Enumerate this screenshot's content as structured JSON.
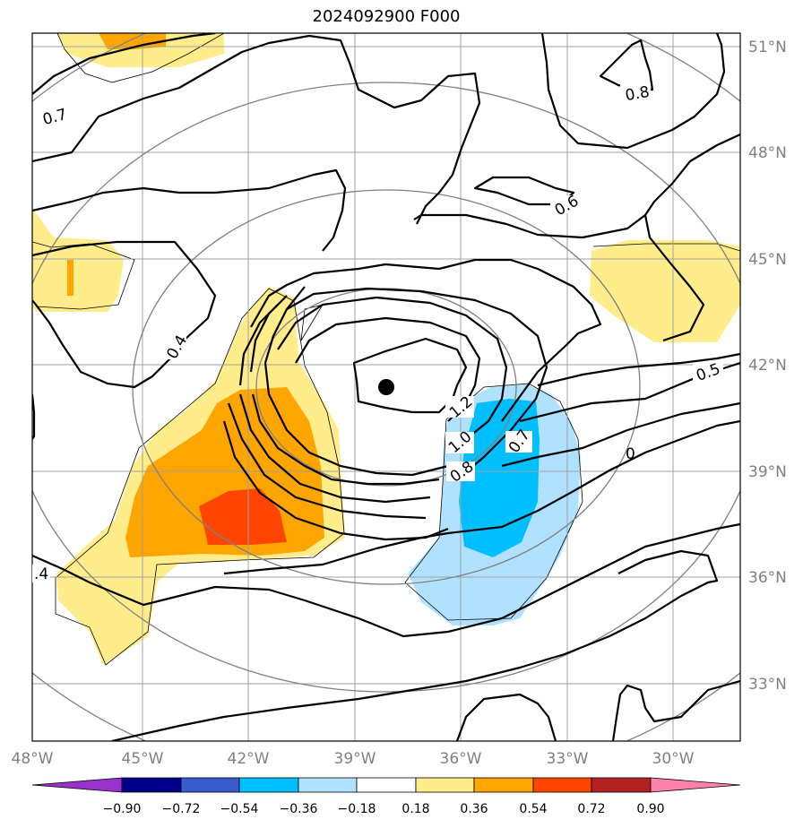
{
  "title": "2024092900 F000",
  "map": {
    "lat_labels": [
      "51°N",
      "48°N",
      "45°N",
      "42°N",
      "39°N",
      "36°N",
      "33°N"
    ],
    "lon_labels": [
      "48°W",
      "45°W",
      "42°W",
      "39°W",
      "36°W",
      "33°W",
      "30°W"
    ],
    "contour_labels": [
      "0.7",
      "0.8",
      "0.6",
      "0.4",
      "0.5",
      "1.2",
      "1.0",
      "0.8",
      "0.7",
      ".4",
      "0"
    ],
    "center_marker": "storm-center-dot"
  },
  "colorbar": {
    "ticks": [
      "−0.90",
      "−0.72",
      "−0.54",
      "−0.36",
      "−0.18",
      "0.18",
      "0.36",
      "0.54",
      "0.72",
      "0.90"
    ],
    "colors": [
      "#9932cc",
      "#00008b",
      "#3a5bcd",
      "#00bfff",
      "#b0e2ff",
      "#ffffff",
      "#ffec8b",
      "#ffa500",
      "#ff4500",
      "#b22222",
      "#ff82ab"
    ]
  },
  "colors": {
    "shade_pos1": "#ffec8b",
    "shade_pos2": "#ffa500",
    "shade_pos3": "#ff4500",
    "shade_neg1": "#b0e2ff",
    "shade_neg2": "#00bfff",
    "grid": "#a0a0a0",
    "circles": "#808080",
    "contour": "#000000"
  }
}
